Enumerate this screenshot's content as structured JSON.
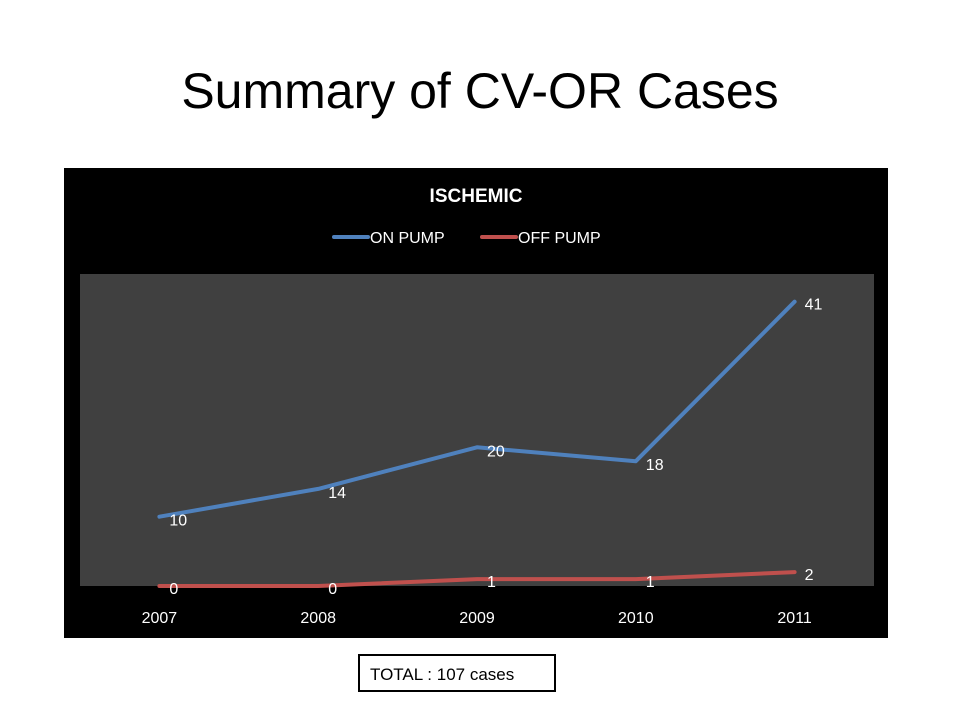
{
  "slide": {
    "title": "Summary of CV-OR Cases",
    "total_note": "TOTAL : 107 cases"
  },
  "chart_data": {
    "type": "line",
    "title": "ISCHEMIC",
    "categories": [
      "2007",
      "2008",
      "2009",
      "2010",
      "2011"
    ],
    "series": [
      {
        "name": "ON PUMP",
        "values": [
          10,
          14,
          20,
          18,
          41
        ],
        "color": "#4F81BD"
      },
      {
        "name": "OFF PUMP",
        "values": [
          0,
          0,
          1,
          1,
          2
        ],
        "color": "#C0504D"
      }
    ],
    "ylim": [
      0,
      45
    ],
    "grid": false,
    "legend_position": "top",
    "data_labels": true,
    "plot_background": "#404040",
    "chart_background": "#000000"
  }
}
